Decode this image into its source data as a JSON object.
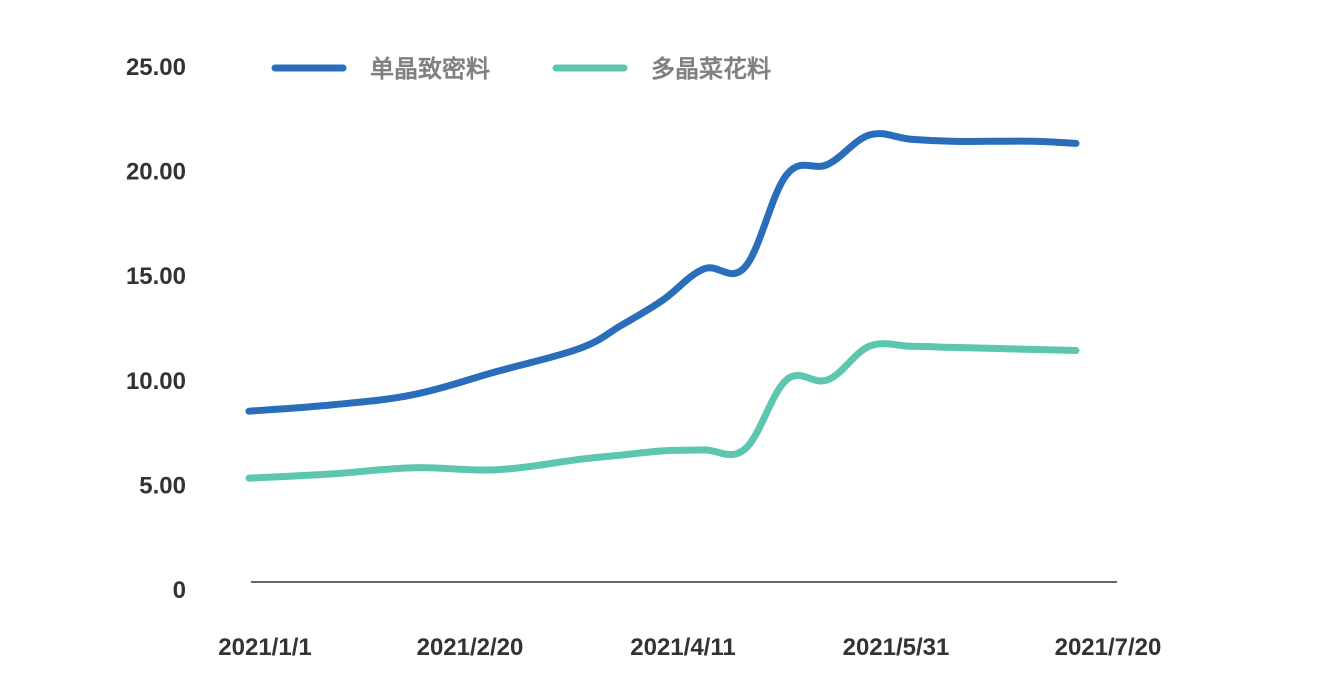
{
  "chart_data": {
    "type": "line",
    "title": "",
    "xlabel": "",
    "ylabel": "",
    "ylim": [
      0,
      25
    ],
    "y_ticks": [
      "0",
      "5.00",
      "10.00",
      "15.00",
      "20.00",
      "25.00"
    ],
    "x_ticks": [
      "2021/1/1",
      "2021/2/20",
      "2021/4/11",
      "2021/5/31",
      "2021/7/20"
    ],
    "x": [
      "2021-01-01",
      "2021-01-21",
      "2021-02-10",
      "2021-03-02",
      "2021-03-22",
      "2021-04-01",
      "2021-04-11",
      "2021-04-21",
      "2021-05-01",
      "2021-05-11",
      "2021-05-21",
      "2021-05-31",
      "2021-06-10",
      "2021-06-20",
      "2021-06-30",
      "2021-07-10",
      "2021-07-20"
    ],
    "series": [
      {
        "name": "单晶致密料",
        "color": "#2a6ebb",
        "values": [
          8.5,
          8.8,
          9.3,
          10.4,
          11.5,
          12.6,
          13.8,
          15.3,
          15.4,
          19.8,
          20.3,
          21.7,
          21.5,
          21.4,
          21.4,
          21.4,
          21.3
        ]
      },
      {
        "name": "多晶菜花料",
        "color": "#5cc6b0",
        "values": [
          5.3,
          5.5,
          5.8,
          5.7,
          6.2,
          6.4,
          6.6,
          6.65,
          6.7,
          10.0,
          10.0,
          11.6,
          11.6,
          11.55,
          11.5,
          11.45,
          11.4
        ]
      }
    ],
    "grid": false,
    "legend_position": "top"
  }
}
